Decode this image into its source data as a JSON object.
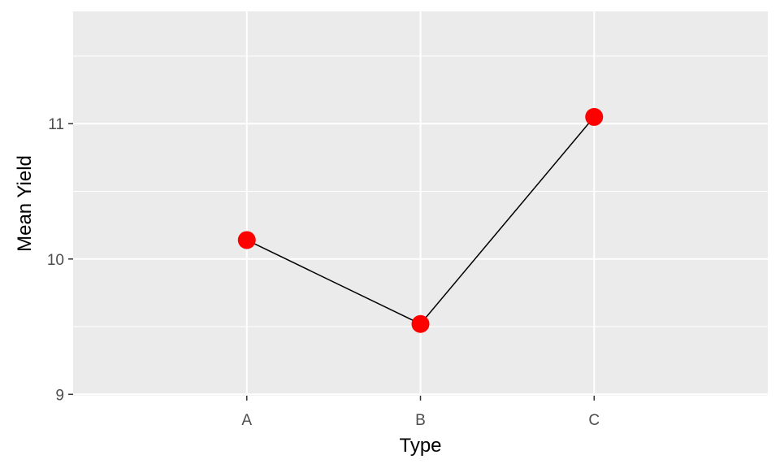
{
  "chart_data": {
    "type": "line",
    "categories": [
      "A",
      "B",
      "C"
    ],
    "values": [
      10.14,
      9.52,
      11.05
    ],
    "xlabel": "Type",
    "ylabel": "Mean Yield",
    "ylim": [
      8.99,
      11.83
    ],
    "yticks": [
      9,
      10,
      11
    ],
    "grid": true,
    "panel_background": "#ebebeb",
    "grid_color": "#ffffff",
    "line_color": "#000000",
    "point_color": "#ff0000"
  }
}
